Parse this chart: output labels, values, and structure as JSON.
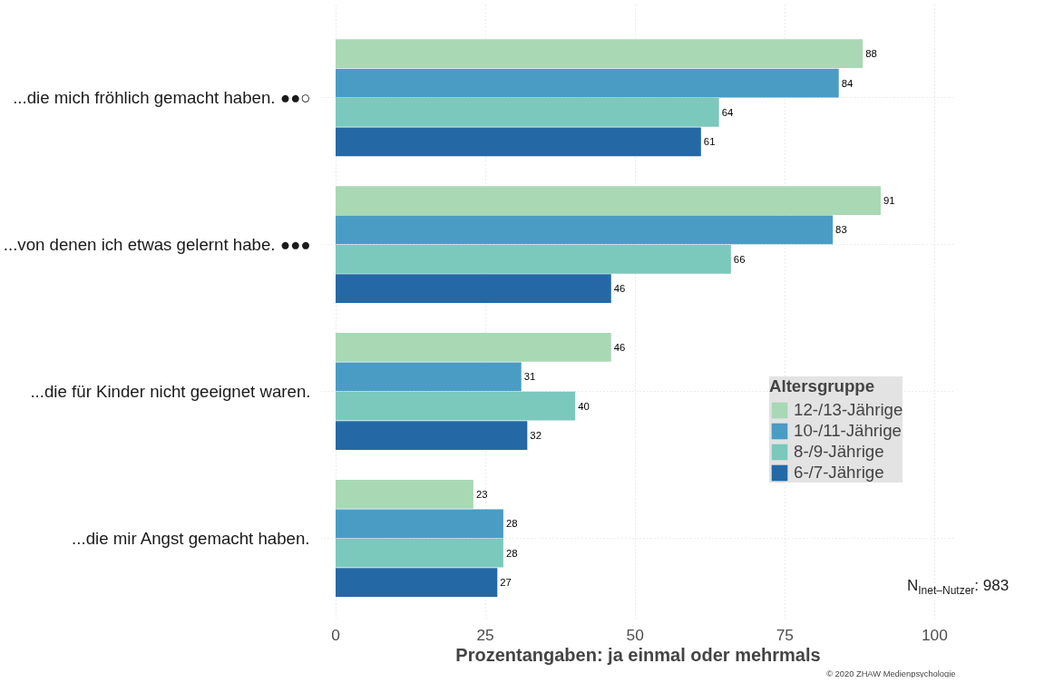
{
  "chart_data": {
    "type": "bar",
    "orientation": "horizontal",
    "categories": [
      "...die mich fröhlich gemacht haben. ●●○",
      "...von denen ich etwas gelernt habe. ●●●",
      "...die für Kinder nicht geeignet waren.",
      "...die mir Angst gemacht haben."
    ],
    "series": [
      {
        "name": "12-/13-Jährige",
        "color": "#a8d8b4",
        "values": [
          88,
          91,
          46,
          23
        ]
      },
      {
        "name": "10-/11-Jährige",
        "color": "#4a9cc4",
        "values": [
          84,
          83,
          31,
          28
        ]
      },
      {
        "name": "8-/9-Jährige",
        "color": "#7bc8bc",
        "values": [
          64,
          66,
          40,
          28
        ]
      },
      {
        "name": "6-/7-Jährige",
        "color": "#2469a6",
        "values": [
          61,
          46,
          32,
          27
        ]
      }
    ],
    "xlabel": "Prozentangaben: ja einmal oder mehrmals",
    "legend_title": "Altersgruppe",
    "legend": "right",
    "xlim": [
      -2.5,
      103.5
    ],
    "xticks": [
      0,
      25,
      50,
      75,
      100
    ],
    "grid": true,
    "data_labels": true,
    "annotations": [
      "N$_{Inet–Nutzer}$: 983",
      "© 2020 ZHAW Medienpsychologie"
    ]
  }
}
